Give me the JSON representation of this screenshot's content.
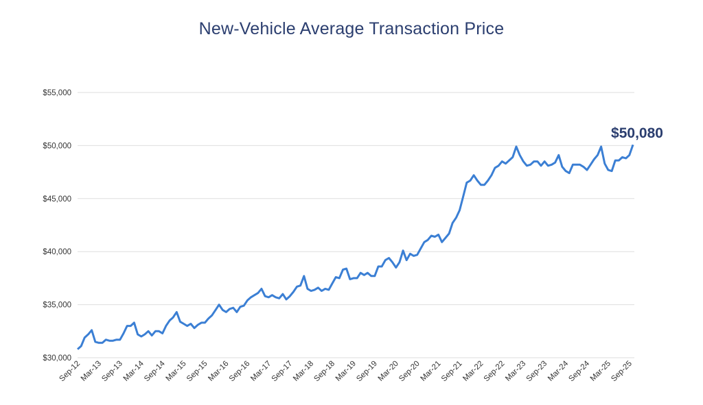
{
  "chart_data": {
    "type": "line",
    "title": "New-Vehicle Average Transaction Price",
    "xlabel": "",
    "ylabel": "",
    "ylim": [
      30000,
      55000
    ],
    "y_ticks": [
      30000,
      35000,
      40000,
      45000,
      50000,
      55000
    ],
    "y_tick_labels": [
      "$30,000",
      "$35,000",
      "$40,000",
      "$45,000",
      "$50,000",
      "$55,000"
    ],
    "x_start": "Sep-12",
    "x_end": "Sep-25",
    "x_frequency": "monthly",
    "x_tick_labels": [
      "Sep-12",
      "Mar-13",
      "Sep-13",
      "Mar-14",
      "Sep-14",
      "Mar-15",
      "Sep-15",
      "Mar-16",
      "Sep-16",
      "Mar-17",
      "Sep-17",
      "Mar-18",
      "Sep-18",
      "Mar-19",
      "Sep-19",
      "Mar-20",
      "Sep-20",
      "Mar-21",
      "Sep-21",
      "Mar-22",
      "Sep-22",
      "Mar-23",
      "Sep-23",
      "Mar-24",
      "Sep-24",
      "Mar-25",
      "Sep-25"
    ],
    "grid": true,
    "line_color": "#3b7fd4",
    "series": [
      {
        "values": [
          30800,
          31100,
          31900,
          32200,
          32600,
          31500,
          31400,
          31400,
          31700,
          31600,
          31600,
          31700,
          31700,
          32300,
          33000,
          33000,
          33300,
          32200,
          32000,
          32200,
          32500,
          32100,
          32500,
          32500,
          32300,
          33000,
          33500,
          33800,
          34300,
          33400,
          33200,
          33000,
          33200,
          32800,
          33100,
          33300,
          33300,
          33700,
          34000,
          34500,
          35000,
          34500,
          34300,
          34600,
          34700,
          34300,
          34800,
          34900,
          35400,
          35700,
          35900,
          36100,
          36500,
          35800,
          35700,
          35900,
          35700,
          35600,
          36000,
          35500,
          35800,
          36200,
          36700,
          36800,
          37700,
          36500,
          36300,
          36400,
          36600,
          36300,
          36500,
          36400,
          37000,
          37600,
          37500,
          38300,
          38400,
          37400,
          37500,
          37500,
          38000,
          37800,
          38000,
          37700,
          37700,
          38600,
          38600,
          39200,
          39400,
          39000,
          38500,
          39000,
          40100,
          39200,
          39800,
          39600,
          39700,
          40300,
          40900,
          41100,
          41500,
          41400,
          41600,
          40900,
          41300,
          41700,
          42700,
          43200,
          43900,
          45200,
          46500,
          46700,
          47200,
          46700,
          46300,
          46300,
          46700,
          47200,
          47900,
          48100,
          48500,
          48300,
          48600,
          48900,
          49900,
          49100,
          48500,
          48100,
          48200,
          48500,
          48500,
          48100,
          48500,
          48100,
          48200,
          48400,
          49100,
          48000,
          47600,
          47400,
          48200,
          48200,
          48200,
          48000,
          47700,
          48200,
          48700,
          49100,
          49900,
          48300,
          47700,
          47600,
          48600,
          48600,
          48900,
          48800,
          49100,
          50080
        ]
      }
    ],
    "annotations": [
      {
        "text": "$50,080"
      }
    ]
  }
}
